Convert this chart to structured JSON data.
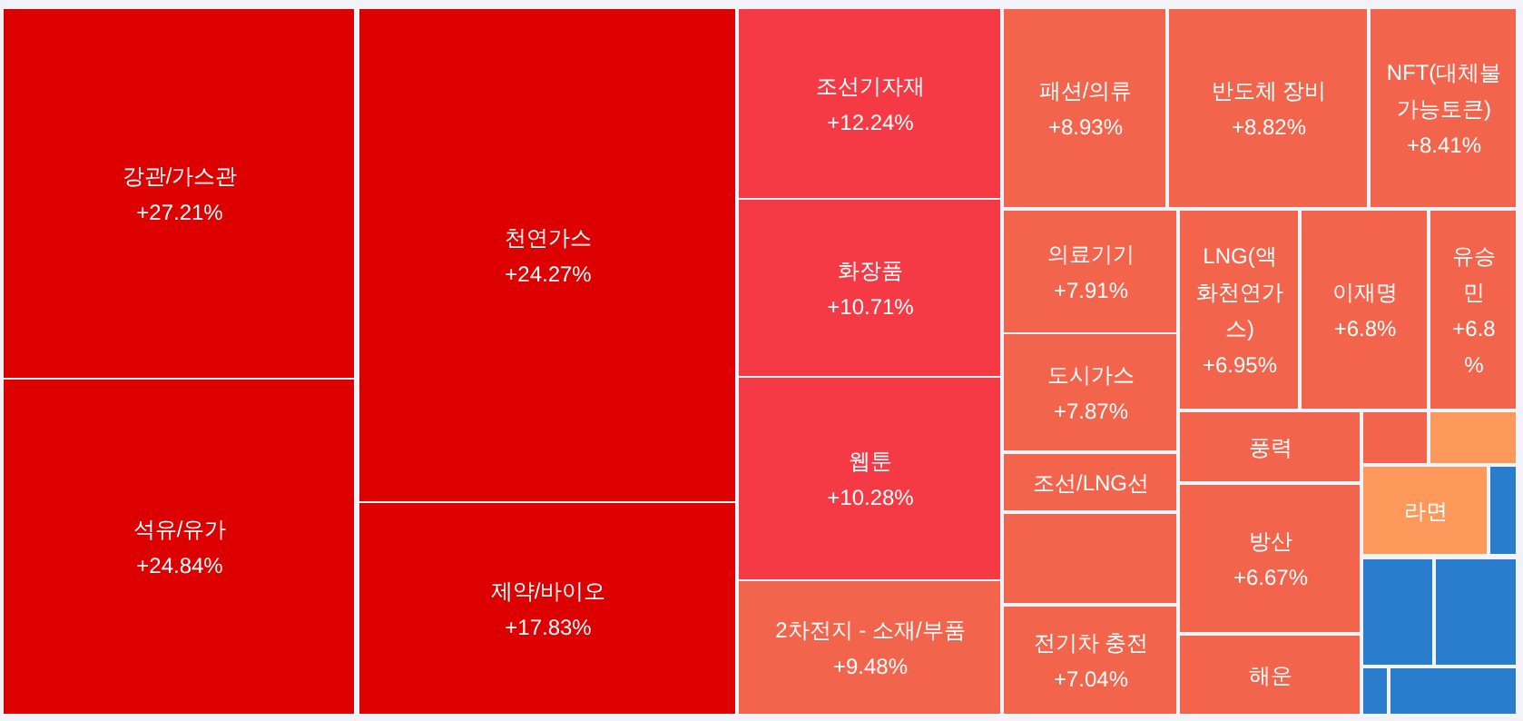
{
  "chart_data": {
    "type": "other",
    "categories": [
      "강관/가스관",
      "석유/유가",
      "천연가스",
      "제약/바이오",
      "조선기자재",
      "화장품",
      "웹툰",
      "2차전지 - 소재/부품",
      "패션/의류",
      "반도체 장비",
      "NFT(대체불가능토큰)",
      "의료기기",
      "도시가스",
      "조선/LNG선",
      null,
      "전기차 충전",
      "LNG(액화천연가스)",
      "이재명",
      "유승민",
      "풍력",
      "방산",
      "해운",
      null,
      null,
      "라면",
      null,
      null,
      null,
      null,
      null
    ],
    "values": [
      27.21,
      24.84,
      24.27,
      17.83,
      12.24,
      10.71,
      10.28,
      9.48,
      8.93,
      8.82,
      8.41,
      7.91,
      7.87,
      null,
      null,
      7.04,
      6.95,
      6.8,
      6.8,
      null,
      6.67,
      null,
      null,
      null,
      null,
      null,
      null,
      null,
      null,
      null
    ],
    "value_labels": [
      "+27.21%",
      "+24.84%",
      "+24.27%",
      "+17.83%",
      "+12.24%",
      "+10.71%",
      "+10.28%",
      "+9.48%",
      "+8.93%",
      "+8.82%",
      "+8.41%",
      "+7.91%",
      "+7.87%",
      null,
      null,
      "+7.04%",
      "+6.95%",
      "+6.8%",
      "+6.8%",
      null,
      "+6.67%",
      null,
      null,
      null,
      null,
      null,
      null,
      null,
      null,
      null
    ],
    "colors": [
      "#dc0000",
      "#dc0000",
      "#dc0000",
      "#dc0000",
      "#f53a45",
      "#f53a45",
      "#f53a45",
      "#f2644c",
      "#f2644c",
      "#f2644c",
      "#f2644c",
      "#f2644c",
      "#f2644c",
      "#f2644c",
      "#f2644c",
      "#f2644c",
      "#f2644c",
      "#f2644c",
      "#f2644c",
      "#f2644c",
      "#f2644c",
      "#f2644c",
      "#f2644c",
      "#fd9a5b",
      "#fd9a5b",
      "#2a7ccd",
      "#2a7ccd",
      "#2a7ccd",
      "#2a7ccd",
      "#2a7ccd"
    ]
  }
}
